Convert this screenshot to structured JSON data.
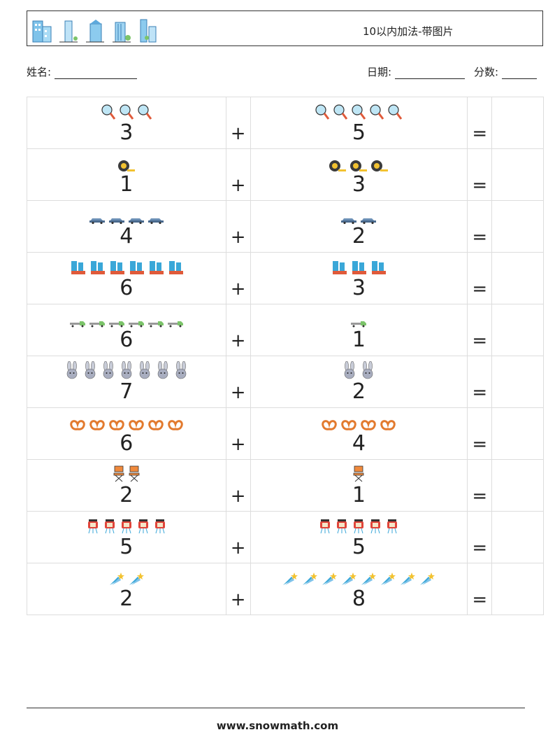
{
  "header": {
    "title": "10以内加法-带图片"
  },
  "info": {
    "name_label": "姓名:",
    "date_label": "日期:",
    "score_label": "分数:"
  },
  "rows": [
    {
      "a": "3",
      "b": "5",
      "icon": "magnifier",
      "plus": "+",
      "eq": "="
    },
    {
      "a": "1",
      "b": "3",
      "icon": "tape-measure",
      "plus": "+",
      "eq": "="
    },
    {
      "a": "4",
      "b": "2",
      "icon": "car",
      "plus": "+",
      "eq": "="
    },
    {
      "a": "6",
      "b": "3",
      "icon": "boots",
      "plus": "+",
      "eq": "="
    },
    {
      "a": "6",
      "b": "1",
      "icon": "truck",
      "plus": "+",
      "eq": "="
    },
    {
      "a": "7",
      "b": "2",
      "icon": "rabbit",
      "plus": "+",
      "eq": "="
    },
    {
      "a": "6",
      "b": "4",
      "icon": "pretzel",
      "plus": "+",
      "eq": "="
    },
    {
      "a": "2",
      "b": "1",
      "icon": "chair",
      "plus": "+",
      "eq": "="
    },
    {
      "a": "5",
      "b": "5",
      "icon": "lantern",
      "plus": "+",
      "eq": "="
    },
    {
      "a": "2",
      "b": "8",
      "icon": "shooting-star",
      "plus": "+",
      "eq": "="
    }
  ],
  "footer": {
    "site": "www.snowmath.com"
  }
}
